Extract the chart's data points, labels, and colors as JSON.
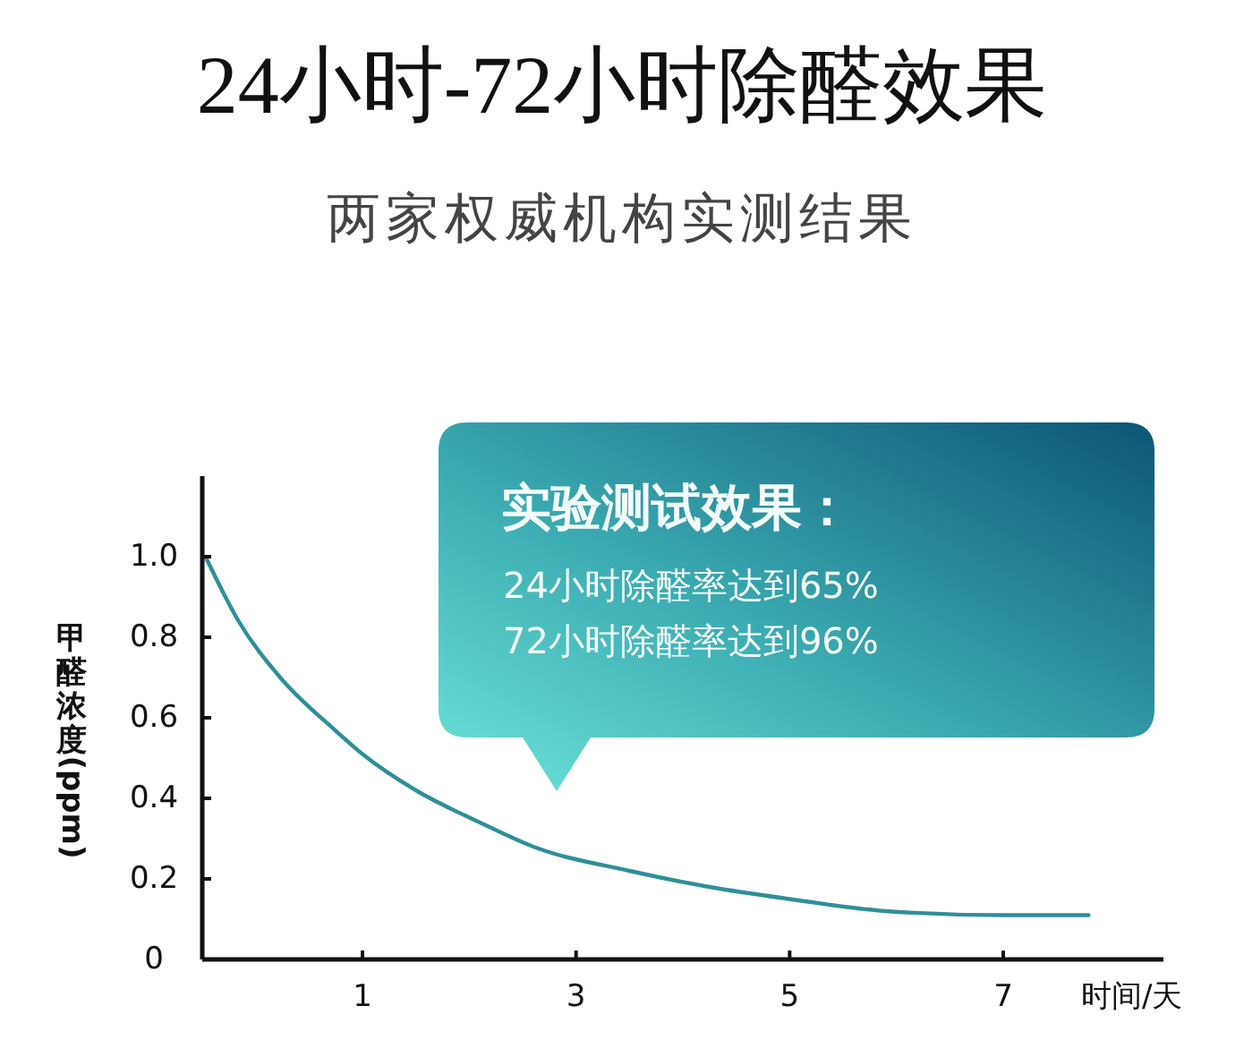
{
  "chart_data": {
    "type": "line",
    "title": "24小时-72小时除醛效果",
    "subtitle": "两家权威机构实测结果",
    "xlabel": "时间/天",
    "ylabel": "甲醛浓度(ppm)",
    "annotations": [
      "实验测试效果：",
      "24小时除醛率达到65%",
      "72小时除醛率达到96%"
    ],
    "x": [
      -0.47,
      -0.16,
      0.23,
      0.74,
      1.0,
      1.5,
      2.1,
      2.6,
      3.5,
      4.25,
      5.0,
      5.9,
      7.0,
      7.8
    ],
    "values": [
      1.0,
      0.84,
      0.7,
      0.57,
      0.51,
      0.42,
      0.34,
      0.28,
      0.22,
      0.18,
      0.15,
      0.12,
      0.11,
      0.11
    ],
    "color": "#2e8f9a",
    "line_style": "solid",
    "xlim": [
      -0.5,
      8.5
    ],
    "xticks": [
      1,
      3,
      5,
      7
    ],
    "ylim": [
      0,
      1.2
    ],
    "yticks": [
      0,
      0.2,
      0.4,
      0.6,
      0.8,
      {
        "value": 1,
        "label": "1.0"
      }
    ]
  }
}
